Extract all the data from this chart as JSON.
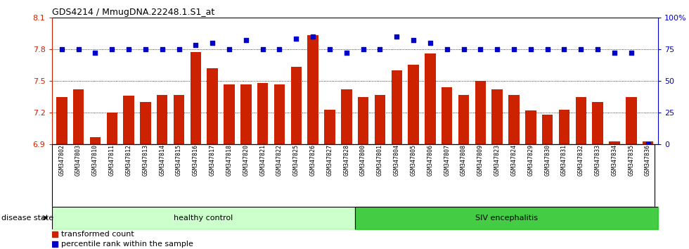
{
  "title": "GDS4214 / MmugDNA.22248.1.S1_at",
  "samples": [
    "GSM347802",
    "GSM347803",
    "GSM347810",
    "GSM347811",
    "GSM347812",
    "GSM347813",
    "GSM347814",
    "GSM347815",
    "GSM347816",
    "GSM347817",
    "GSM347818",
    "GSM347820",
    "GSM347821",
    "GSM347822",
    "GSM347825",
    "GSM347826",
    "GSM347827",
    "GSM347828",
    "GSM347800",
    "GSM347801",
    "GSM347804",
    "GSM347805",
    "GSM347806",
    "GSM347807",
    "GSM347808",
    "GSM347809",
    "GSM347823",
    "GSM347824",
    "GSM347829",
    "GSM347830",
    "GSM347831",
    "GSM347832",
    "GSM347833",
    "GSM347834",
    "GSM347835",
    "GSM347836"
  ],
  "bar_values": [
    7.35,
    7.42,
    6.97,
    7.2,
    7.36,
    7.3,
    7.37,
    7.37,
    7.77,
    7.62,
    7.47,
    7.47,
    7.48,
    7.47,
    7.63,
    7.93,
    7.23,
    7.42,
    7.35,
    7.37,
    7.6,
    7.65,
    7.76,
    7.44,
    7.37,
    7.5,
    7.42,
    7.37,
    7.22,
    7.18,
    7.23,
    7.35,
    7.3,
    6.93,
    7.35,
    6.93
  ],
  "percentile_values": [
    75,
    75,
    72,
    75,
    75,
    75,
    75,
    75,
    78,
    80,
    75,
    82,
    75,
    75,
    83,
    85,
    75,
    72,
    75,
    75,
    85,
    82,
    80,
    75,
    75,
    75,
    75,
    75,
    75,
    75,
    75,
    75,
    75,
    72,
    72,
    0
  ],
  "healthy_control_count": 18,
  "siv_count": 18,
  "ylim_left": [
    6.9,
    8.1
  ],
  "ylim_right": [
    0,
    100
  ],
  "yticks_left": [
    6.9,
    7.2,
    7.5,
    7.8,
    8.1
  ],
  "yticks_right": [
    0,
    25,
    50,
    75,
    100
  ],
  "bar_color": "#cc2200",
  "percentile_color": "#0000cc",
  "healthy_color": "#ccffcc",
  "siv_color": "#44cc44",
  "label_bar": "transformed count",
  "label_pct": "percentile rank within the sample",
  "label_healthy": "healthy control",
  "label_siv": "SIV encephalitis",
  "disease_state_label": "disease state"
}
